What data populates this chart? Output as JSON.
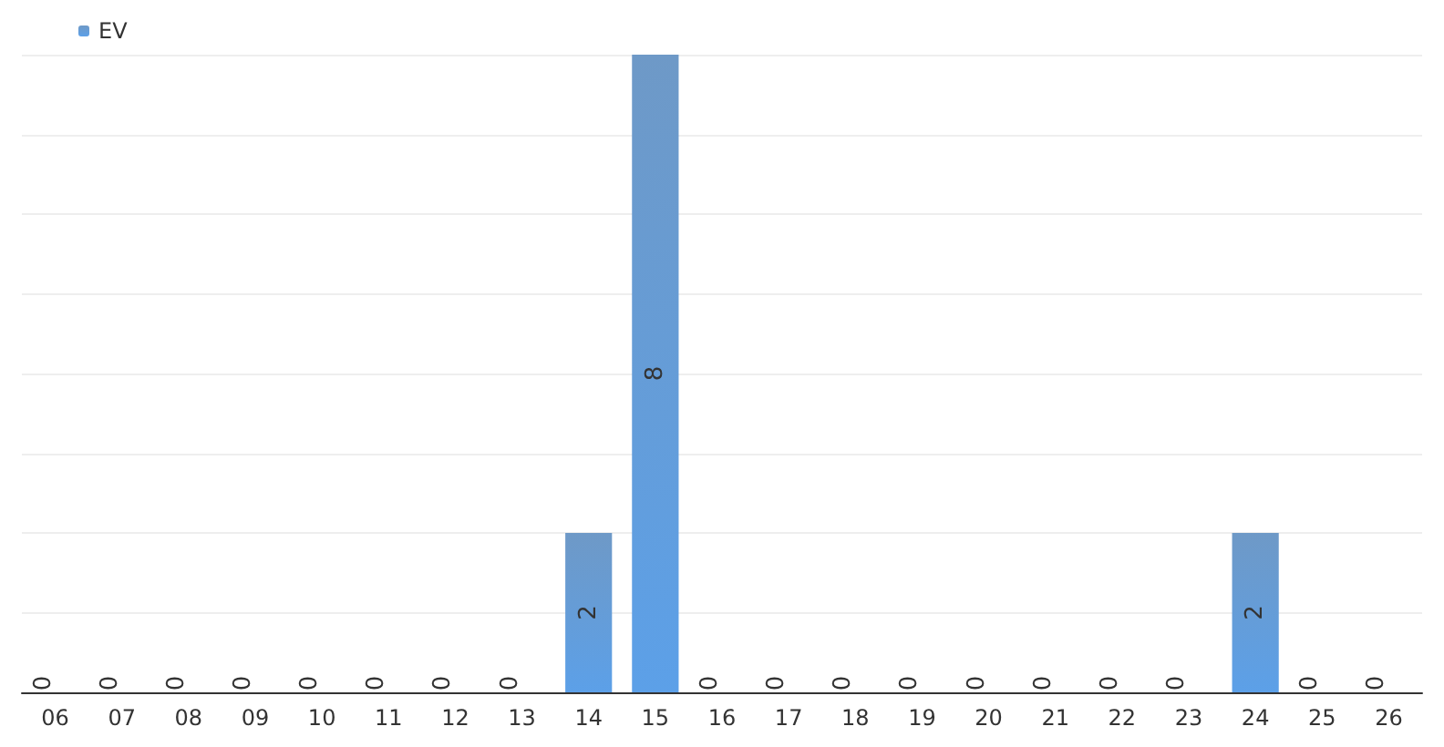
{
  "chart_data": {
    "type": "bar",
    "categories": [
      "06",
      "07",
      "08",
      "09",
      "10",
      "11",
      "12",
      "13",
      "14",
      "15",
      "16",
      "17",
      "18",
      "19",
      "20",
      "21",
      "22",
      "23",
      "24",
      "25",
      "26"
    ],
    "series": [
      {
        "name": "EV",
        "color": "#4a80ba",
        "values": [
          0,
          0,
          0,
          0,
          0,
          0,
          0,
          0,
          2,
          8,
          0,
          0,
          0,
          0,
          0,
          0,
          0,
          0,
          2,
          0,
          0
        ]
      }
    ],
    "ylim": [
      0,
      8
    ],
    "yticks": [
      {
        "value": 0,
        "label": null
      },
      {
        "value": 1,
        "label": null
      },
      {
        "value": 2,
        "label": null
      },
      {
        "value": 3,
        "label": null
      },
      {
        "value": 4,
        "label": null
      },
      {
        "value": 5,
        "label": null
      },
      {
        "value": 6,
        "label": null
      },
      {
        "value": 7,
        "label": null
      },
      {
        "value": 8,
        "label": null
      }
    ],
    "grid": "y",
    "legend": "top left",
    "tick_labels": "x",
    "data_labels": true
  }
}
